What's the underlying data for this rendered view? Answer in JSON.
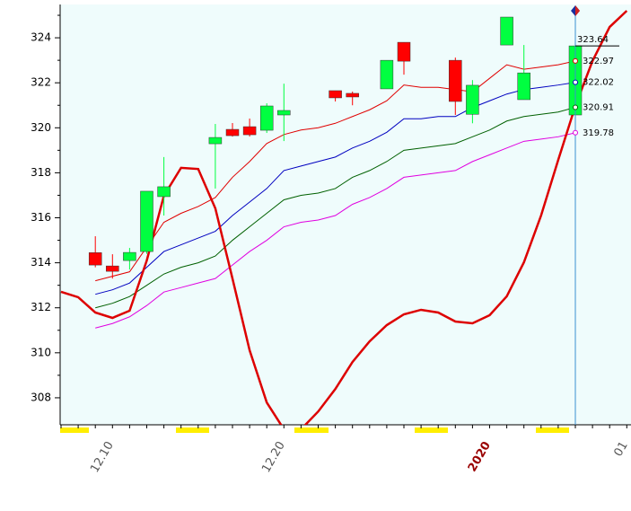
{
  "chart_data": {
    "type": "candlestick",
    "categories": [
      null,
      null,
      null,
      "12.10",
      null,
      null,
      null,
      null,
      null,
      null,
      null,
      null,
      null,
      "12.20",
      null,
      null,
      null,
      null,
      null,
      null,
      null,
      null,
      null,
      null,
      null,
      "2020",
      null,
      null,
      null,
      null,
      null,
      null,
      null,
      "01"
    ],
    "ylim": [
      306.8,
      325.48
    ],
    "yticks": [
      308,
      310,
      312,
      314,
      316,
      318,
      320,
      322,
      324
    ],
    "up_color": "#00ff40",
    "down_color": "#ff0000",
    "candles": {
      "open": [
        null,
        null,
        314.45,
        313.86,
        314.1,
        314.5,
        316.94,
        null,
        null,
        319.29,
        319.93,
        320.05,
        319.89,
        320.57,
        null,
        null,
        321.65,
        321.53,
        null,
        321.73,
        323.8,
        null,
        null,
        323.0,
        320.6,
        null,
        323.68,
        321.25,
        null,
        null,
        320.57,
        null,
        null,
        null
      ],
      "high": [
        null,
        null,
        315.18,
        314.38,
        314.66,
        317.18,
        318.7,
        null,
        null,
        320.17,
        320.21,
        320.41,
        321.09,
        321.96,
        null,
        null,
        321.65,
        321.61,
        null,
        323.0,
        323.8,
        null,
        null,
        323.12,
        322.12,
        null,
        324.92,
        323.68,
        null,
        null,
        323.68,
        null,
        null,
        null
      ],
      "low": [
        null,
        null,
        313.8,
        313.3,
        313.7,
        314.4,
        316.1,
        null,
        null,
        317.3,
        319.61,
        319.61,
        319.77,
        319.41,
        null,
        null,
        321.17,
        321.0,
        null,
        321.73,
        322.36,
        null,
        null,
        320.57,
        320.2,
        null,
        323.68,
        321.25,
        null,
        null,
        320.57,
        null,
        null,
        null
      ],
      "close": [
        null,
        null,
        313.9,
        313.62,
        314.46,
        317.18,
        317.38,
        null,
        null,
        319.57,
        319.65,
        319.69,
        320.97,
        320.77,
        null,
        null,
        321.33,
        321.37,
        null,
        323.0,
        322.96,
        null,
        null,
        321.17,
        321.89,
        null,
        324.92,
        322.44,
        null,
        null,
        323.64,
        null,
        null,
        null
      ]
    },
    "series": [
      {
        "color": "#e00000",
        "width": 1,
        "values": [
          null,
          null,
          313.2,
          313.4,
          313.6,
          314.7,
          315.8,
          316.2,
          316.5,
          316.9,
          317.8,
          318.5,
          319.3,
          319.7,
          319.9,
          320.0,
          320.2,
          320.5,
          320.8,
          321.2,
          321.9,
          321.8,
          321.8,
          321.7,
          321.6,
          322.2,
          322.8,
          322.6,
          322.7,
          322.8,
          322.97,
          null,
          null,
          null
        ]
      },
      {
        "color": "#0000c0",
        "width": 1,
        "values": [
          null,
          null,
          312.6,
          312.8,
          313.1,
          313.8,
          314.5,
          314.8,
          315.1,
          315.4,
          316.1,
          316.7,
          317.3,
          318.1,
          318.3,
          318.5,
          318.7,
          319.1,
          319.4,
          319.8,
          320.4,
          320.4,
          320.5,
          320.5,
          320.9,
          321.2,
          321.5,
          321.7,
          321.8,
          321.9,
          322.02,
          null,
          null,
          null
        ]
      },
      {
        "color": "#006000",
        "width": 1,
        "values": [
          null,
          null,
          312.0,
          312.2,
          312.5,
          313.0,
          313.5,
          313.8,
          314.0,
          314.3,
          315.0,
          315.6,
          316.2,
          316.8,
          317.0,
          317.1,
          317.3,
          317.8,
          318.1,
          318.5,
          319.0,
          319.1,
          319.2,
          319.3,
          319.6,
          319.9,
          320.3,
          320.5,
          320.6,
          320.7,
          320.91,
          null,
          null,
          null
        ]
      },
      {
        "color": "#e000e0",
        "width": 1,
        "values": [
          null,
          null,
          311.1,
          311.3,
          311.6,
          312.1,
          312.7,
          312.9,
          313.1,
          313.3,
          313.9,
          314.5,
          315.0,
          315.6,
          315.8,
          315.9,
          316.1,
          316.6,
          316.9,
          317.3,
          317.8,
          317.9,
          318.0,
          318.1,
          318.5,
          318.8,
          319.1,
          319.4,
          319.5,
          319.6,
          319.78,
          null,
          null,
          null
        ]
      },
      {
        "color": "#dd0000",
        "width": 2.5,
        "values": [
          312.71,
          312.47,
          311.79,
          311.55,
          311.87,
          314.1,
          316.98,
          318.22,
          318.17,
          316.42,
          313.3,
          310.11,
          307.79,
          306.6,
          306.6,
          307.39,
          308.39,
          309.59,
          310.51,
          311.23,
          311.71,
          311.91,
          311.79,
          311.39,
          311.31,
          311.67,
          312.51,
          314.02,
          316.1,
          318.57,
          320.97,
          322.97,
          324.48,
          325.2
        ]
      }
    ]
  }
}
